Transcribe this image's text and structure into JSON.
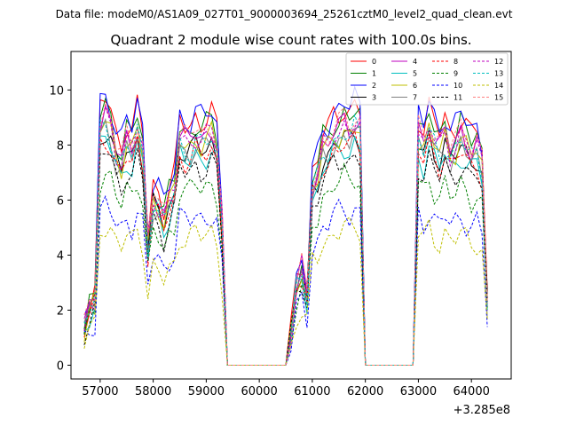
{
  "figure": {
    "suptitle": "Data file: modeM0/AS1A09_027T01_9000003694_25261cztM0_level2_quad_clean.evt",
    "title": "Quadrant 2 module wise count rates with 100.0s bins.",
    "x_offset_label": "+3.285e8"
  },
  "chart_data": {
    "type": "line",
    "title": "Quadrant 2 module wise count rates with 100.0s bins.",
    "xlabel": "",
    "ylabel": "",
    "x_offset": 328500000,
    "xlim": [
      56450,
      64750
    ],
    "ylim": [
      -0.5,
      11.4
    ],
    "x_ticks": [
      57000,
      58000,
      59000,
      60000,
      61000,
      62000,
      63000,
      64000
    ],
    "y_ticks": [
      0,
      2,
      4,
      6,
      8,
      10
    ],
    "grid": false,
    "legend": {
      "placement": "top-right",
      "columns": 4
    },
    "x": [
      56700,
      56800,
      56900,
      57000,
      57100,
      57200,
      57300,
      57400,
      57500,
      57600,
      57700,
      57800,
      57900,
      58000,
      58100,
      58200,
      58300,
      58400,
      58500,
      58600,
      58700,
      58800,
      58900,
      59000,
      59100,
      59200,
      59300,
      59400,
      59500,
      59600,
      59700,
      59800,
      59900,
      60000,
      60100,
      60200,
      60300,
      60400,
      60500,
      60600,
      60700,
      60800,
      60900,
      61000,
      61100,
      61200,
      61300,
      61400,
      61500,
      61600,
      61700,
      61800,
      61900,
      62000,
      62100,
      62200,
      62300,
      62400,
      62500,
      62600,
      62700,
      62800,
      62900,
      63000,
      63100,
      63200,
      63300,
      63400,
      63500,
      63600,
      63700,
      63800,
      63900,
      64000,
      64100,
      64200,
      64300
    ],
    "base_profile": [
      1.3,
      2.0,
      2.3,
      8.3,
      8.6,
      8.2,
      7.4,
      7.1,
      7.8,
      7.5,
      8.3,
      7.5,
      4.2,
      5.8,
      5.6,
      5.1,
      5.7,
      6.1,
      7.9,
      7.7,
      7.7,
      8.0,
      7.8,
      7.9,
      8.1,
      7.6,
      4.9,
      0,
      0,
      0,
      0,
      0,
      0,
      0,
      0,
      0,
      0,
      0,
      0,
      1.1,
      2.8,
      3.3,
      2.4,
      6.2,
      6.6,
      7.5,
      7.6,
      8.0,
      8.1,
      8.3,
      8.1,
      8.4,
      8.2,
      0,
      0,
      0,
      0,
      0,
      0,
      0,
      0,
      0,
      0,
      8.0,
      7.6,
      8.3,
      7.8,
      7.5,
      8.0,
      7.4,
      7.6,
      8.0,
      7.7,
      7.4,
      7.6,
      7.0,
      2.2
    ],
    "series": [
      {
        "name": "0",
        "color": "#ff0000",
        "dash": false,
        "scale": 1.13,
        "seed": 1
      },
      {
        "name": "1",
        "color": "#008000",
        "dash": false,
        "scale": 1.1,
        "seed": 2
      },
      {
        "name": "2",
        "color": "#0000ff",
        "dash": false,
        "scale": 1.15,
        "seed": 3
      },
      {
        "name": "3",
        "color": "#000000",
        "dash": false,
        "scale": 1.0,
        "seed": 4
      },
      {
        "name": "4",
        "color": "#bf00bf",
        "dash": false,
        "scale": 1.06,
        "seed": 5
      },
      {
        "name": "5",
        "color": "#00bfbf",
        "dash": false,
        "scale": 0.96,
        "seed": 6
      },
      {
        "name": "6",
        "color": "#bfbf00",
        "dash": false,
        "scale": 1.03,
        "seed": 7
      },
      {
        "name": "7",
        "color": "#808080",
        "dash": false,
        "scale": 1.0,
        "seed": 8
      },
      {
        "name": "8",
        "color": "#ff0000",
        "dash": true,
        "scale": 0.97,
        "seed": 9
      },
      {
        "name": "9",
        "color": "#008000",
        "dash": true,
        "scale": 0.82,
        "seed": 10
      },
      {
        "name": "10",
        "color": "#0000ff",
        "dash": true,
        "scale": 0.68,
        "seed": 11
      },
      {
        "name": "11",
        "color": "#000000",
        "dash": true,
        "scale": 0.91,
        "seed": 12
      },
      {
        "name": "12",
        "color": "#bf00bf",
        "dash": true,
        "scale": 1.05,
        "seed": 13
      },
      {
        "name": "13",
        "color": "#00bfbf",
        "dash": true,
        "scale": 1.02,
        "seed": 14
      },
      {
        "name": "14",
        "color": "#bfbf00",
        "dash": true,
        "scale": 0.6,
        "seed": 15
      },
      {
        "name": "15",
        "color": "#ff8080",
        "dash": true,
        "scale": 1.08,
        "seed": 16
      }
    ]
  }
}
